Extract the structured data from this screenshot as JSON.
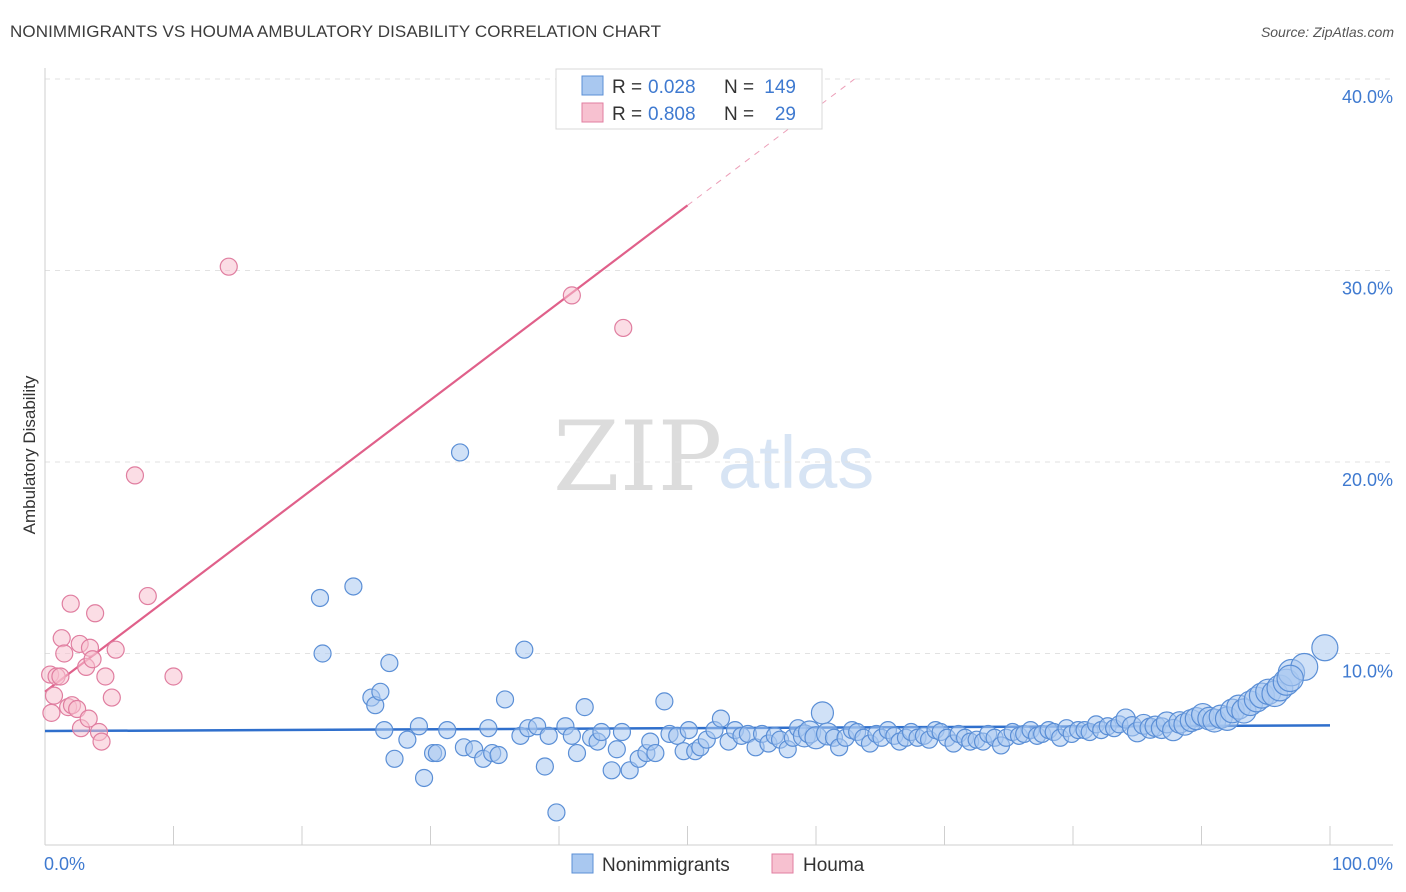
{
  "title": "NONIMMIGRANTS VS HOUMA AMBULATORY DISABILITY CORRELATION CHART",
  "source": "Source: ZipAtlas.com",
  "watermark": {
    "zip": "ZIP",
    "atlas": "atlas"
  },
  "legend": {
    "rows": [
      {
        "r_label": "R =",
        "r_value": "0.028",
        "n_label": "N =",
        "n_value": "149"
      },
      {
        "r_label": "R =",
        "r_value": "0.808",
        "n_label": "N =",
        "n_value": "29"
      }
    ]
  },
  "colors": {
    "blue_fill": "#a9c8f0",
    "blue_stroke": "#5b8fd6",
    "blue_line": "#2f6fcc",
    "pink_fill": "#f7c1d0",
    "pink_stroke": "#e07ea0",
    "pink_line": "#e0608a"
  },
  "chart_data": {
    "type": "scatter",
    "xlabel": "",
    "ylabel": "Ambulatory Disability",
    "xlim": [
      0,
      100
    ],
    "ylim": [
      0,
      40
    ],
    "x_tick_labels": [
      "0.0%",
      "100.0%"
    ],
    "y_ticks": [
      10,
      20,
      30,
      40
    ],
    "y_tick_labels": [
      "10.0%",
      "20.0%",
      "30.0%",
      "40.0%"
    ],
    "grid": true,
    "legend_position": "top-center",
    "series": [
      {
        "name": "Nonimmigrants",
        "color": "#a9c8f0",
        "trend": {
          "x": [
            0,
            100
          ],
          "y": [
            5.95,
            6.25
          ]
        },
        "points": [
          [
            21.4,
            12.9
          ],
          [
            21.6,
            10.0
          ],
          [
            24.0,
            13.5
          ],
          [
            25.4,
            7.7
          ],
          [
            25.7,
            7.3
          ],
          [
            26.1,
            8.0
          ],
          [
            26.4,
            6.0
          ],
          [
            26.8,
            9.5
          ],
          [
            27.2,
            4.5
          ],
          [
            28.2,
            5.5
          ],
          [
            29.1,
            6.2
          ],
          [
            29.5,
            3.5
          ],
          [
            30.2,
            4.8
          ],
          [
            30.5,
            4.8
          ],
          [
            31.3,
            6.0
          ],
          [
            32.3,
            20.5
          ],
          [
            32.6,
            5.1
          ],
          [
            33.4,
            5.0
          ],
          [
            34.1,
            4.5
          ],
          [
            34.5,
            6.1
          ],
          [
            34.8,
            4.8
          ],
          [
            35.3,
            4.7
          ],
          [
            35.8,
            7.6
          ],
          [
            37.0,
            5.7
          ],
          [
            37.3,
            10.2
          ],
          [
            37.6,
            6.1
          ],
          [
            38.3,
            6.2
          ],
          [
            38.9,
            4.1
          ],
          [
            39.2,
            5.7
          ],
          [
            39.8,
            1.7
          ],
          [
            40.5,
            6.2
          ],
          [
            41.0,
            5.7
          ],
          [
            41.4,
            4.8
          ],
          [
            42.0,
            7.2
          ],
          [
            42.5,
            5.6
          ],
          [
            43.0,
            5.4
          ],
          [
            43.3,
            5.9
          ],
          [
            44.1,
            3.9
          ],
          [
            44.5,
            5.0
          ],
          [
            44.9,
            5.9
          ],
          [
            45.5,
            3.9
          ],
          [
            46.2,
            4.5
          ],
          [
            46.8,
            4.8
          ],
          [
            47.1,
            5.4
          ],
          [
            47.5,
            4.8
          ],
          [
            48.2,
            7.5
          ],
          [
            48.6,
            5.8
          ],
          [
            49.2,
            5.7
          ],
          [
            49.7,
            4.9
          ],
          [
            50.1,
            6.0
          ],
          [
            50.6,
            4.9
          ],
          [
            51.0,
            5.1
          ],
          [
            51.5,
            5.5
          ],
          [
            52.1,
            6.0
          ],
          [
            52.6,
            6.6
          ],
          [
            53.2,
            5.4
          ],
          [
            53.7,
            6.0
          ],
          [
            54.2,
            5.7
          ],
          [
            54.7,
            5.8
          ],
          [
            55.3,
            5.1
          ],
          [
            55.8,
            5.8
          ],
          [
            56.3,
            5.3
          ],
          [
            56.8,
            5.7
          ],
          [
            57.2,
            5.5
          ],
          [
            57.8,
            5.0
          ],
          [
            58.2,
            5.6
          ],
          [
            58.6,
            6.1
          ],
          [
            59.1,
            5.7
          ],
          [
            59.5,
            5.9
          ],
          [
            60.0,
            5.6
          ],
          [
            60.5,
            6.9
          ],
          [
            60.9,
            5.8
          ],
          [
            61.4,
            5.6
          ],
          [
            61.8,
            5.1
          ],
          [
            62.3,
            5.6
          ],
          [
            62.8,
            6.0
          ],
          [
            63.2,
            5.9
          ],
          [
            63.7,
            5.6
          ],
          [
            64.2,
            5.3
          ],
          [
            64.7,
            5.8
          ],
          [
            65.1,
            5.6
          ],
          [
            65.6,
            6.0
          ],
          [
            66.1,
            5.7
          ],
          [
            66.5,
            5.4
          ],
          [
            67.0,
            5.6
          ],
          [
            67.4,
            5.9
          ],
          [
            67.9,
            5.6
          ],
          [
            68.4,
            5.7
          ],
          [
            68.8,
            5.5
          ],
          [
            69.3,
            6.0
          ],
          [
            69.7,
            5.9
          ],
          [
            70.2,
            5.6
          ],
          [
            70.7,
            5.3
          ],
          [
            71.1,
            5.8
          ],
          [
            71.6,
            5.6
          ],
          [
            72.0,
            5.4
          ],
          [
            72.5,
            5.5
          ],
          [
            73.0,
            5.4
          ],
          [
            73.4,
            5.8
          ],
          [
            73.9,
            5.6
          ],
          [
            74.4,
            5.2
          ],
          [
            74.8,
            5.6
          ],
          [
            75.3,
            5.9
          ],
          [
            75.8,
            5.7
          ],
          [
            76.2,
            5.8
          ],
          [
            76.7,
            6.0
          ],
          [
            77.2,
            5.7
          ],
          [
            77.6,
            5.8
          ],
          [
            78.1,
            6.0
          ],
          [
            78.5,
            5.9
          ],
          [
            79.0,
            5.6
          ],
          [
            79.5,
            6.1
          ],
          [
            79.9,
            5.8
          ],
          [
            80.4,
            6.0
          ],
          [
            80.9,
            6.0
          ],
          [
            81.3,
            5.9
          ],
          [
            81.8,
            6.3
          ],
          [
            82.2,
            6.0
          ],
          [
            82.7,
            6.2
          ],
          [
            83.2,
            6.1
          ],
          [
            83.6,
            6.3
          ],
          [
            84.1,
            6.6
          ],
          [
            84.6,
            6.2
          ],
          [
            85.0,
            5.9
          ],
          [
            85.5,
            6.3
          ],
          [
            86.0,
            6.1
          ],
          [
            86.4,
            6.2
          ],
          [
            86.9,
            6.1
          ],
          [
            87.3,
            6.4
          ],
          [
            87.8,
            6.0
          ],
          [
            88.3,
            6.4
          ],
          [
            88.7,
            6.3
          ],
          [
            89.2,
            6.5
          ],
          [
            89.6,
            6.6
          ],
          [
            90.1,
            6.8
          ],
          [
            90.6,
            6.6
          ],
          [
            91.0,
            6.5
          ],
          [
            91.5,
            6.7
          ],
          [
            92.0,
            6.6
          ],
          [
            92.4,
            7.0
          ],
          [
            92.9,
            7.2
          ],
          [
            93.3,
            7.0
          ],
          [
            93.8,
            7.4
          ],
          [
            94.3,
            7.6
          ],
          [
            94.7,
            7.8
          ],
          [
            95.2,
            8.0
          ],
          [
            95.7,
            7.9
          ],
          [
            96.1,
            8.2
          ],
          [
            96.6,
            8.5
          ],
          [
            97.0,
            9.0
          ],
          [
            98.0,
            9.3
          ],
          [
            99.6,
            10.3
          ],
          [
            96.9,
            8.7
          ]
        ]
      },
      {
        "name": "Houma",
        "color": "#f7c1d0",
        "trend": {
          "x": [
            0,
            50
          ],
          "y": [
            8.0,
            33.4
          ]
        },
        "trend_extension": {
          "x": [
            50,
            63
          ],
          "y": [
            33.4,
            40.0
          ]
        },
        "points": [
          [
            0.4,
            8.9
          ],
          [
            0.5,
            6.9
          ],
          [
            0.7,
            7.8
          ],
          [
            0.9,
            8.8
          ],
          [
            1.2,
            8.8
          ],
          [
            1.3,
            10.8
          ],
          [
            1.5,
            10.0
          ],
          [
            1.8,
            7.2
          ],
          [
            2.0,
            12.6
          ],
          [
            2.1,
            7.3
          ],
          [
            2.5,
            7.1
          ],
          [
            2.7,
            10.5
          ],
          [
            2.8,
            6.1
          ],
          [
            3.2,
            9.3
          ],
          [
            3.4,
            6.6
          ],
          [
            3.5,
            10.3
          ],
          [
            3.7,
            9.7
          ],
          [
            3.9,
            12.1
          ],
          [
            4.2,
            5.9
          ],
          [
            4.4,
            5.4
          ],
          [
            4.7,
            8.8
          ],
          [
            5.2,
            7.7
          ],
          [
            5.5,
            10.2
          ],
          [
            7.0,
            19.3
          ],
          [
            8.0,
            13.0
          ],
          [
            10.0,
            8.8
          ],
          [
            14.3,
            30.2
          ],
          [
            41.0,
            28.7
          ],
          [
            45.0,
            27.0
          ]
        ]
      }
    ]
  },
  "bottom_legend": [
    "Nonimmigrants",
    "Houma"
  ]
}
